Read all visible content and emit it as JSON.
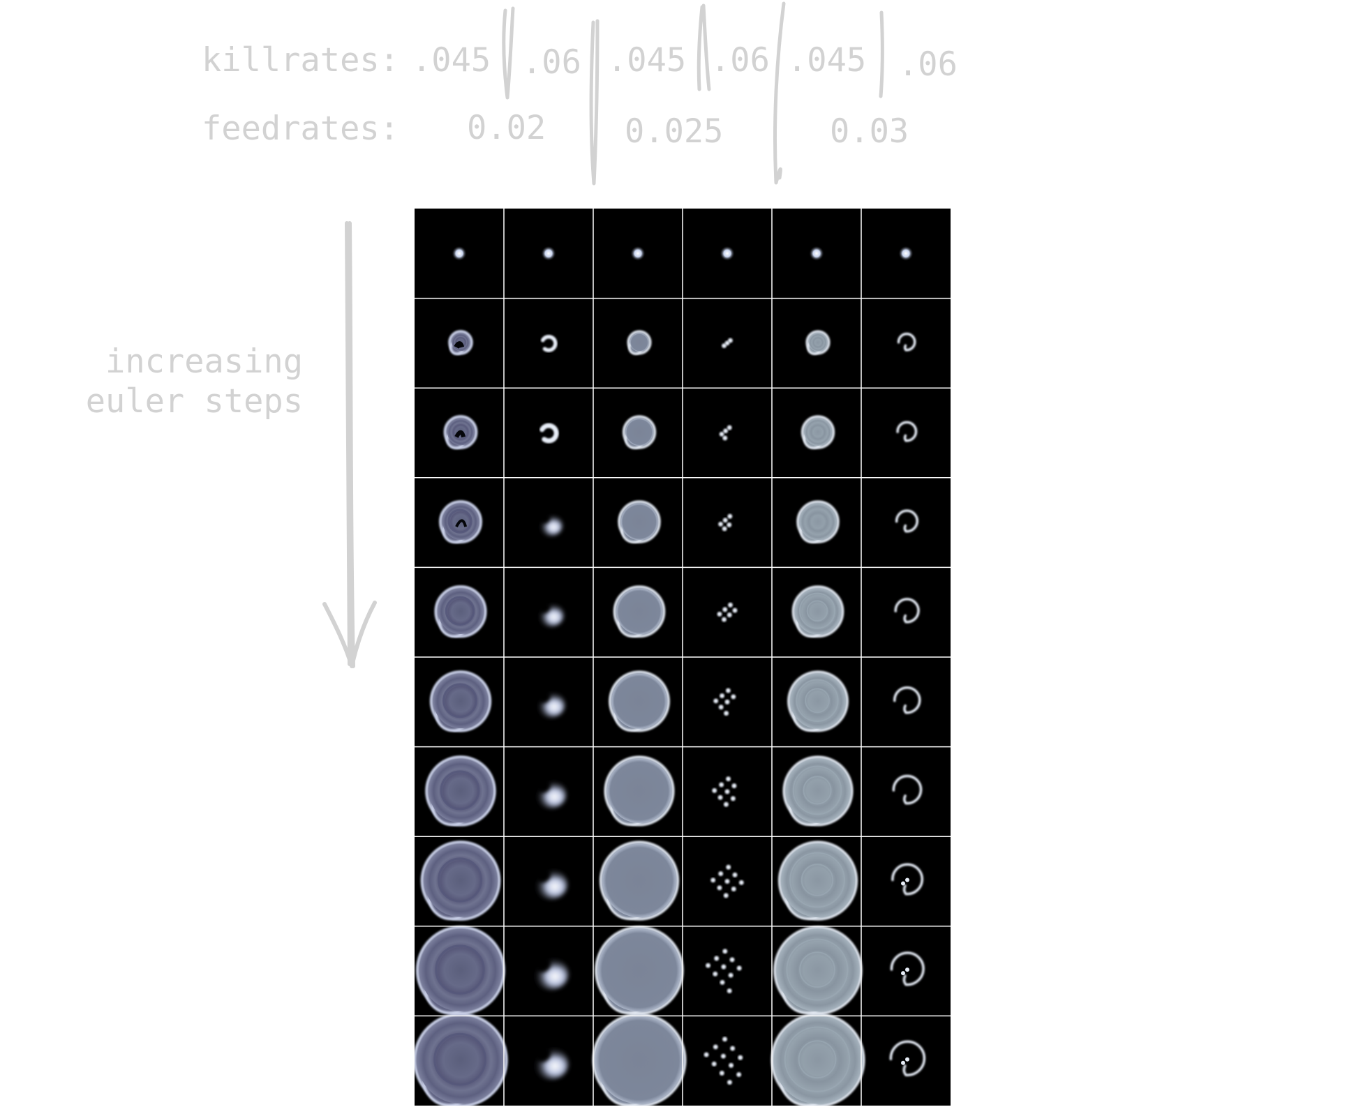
{
  "header": {
    "killrates_label": "killrates:",
    "feedrates_label": "feedrates:",
    "killrates": [
      ".045",
      ".06",
      ".045",
      ".06",
      ".045",
      ".06"
    ],
    "feedrates": [
      "0.02",
      "0.025",
      "0.03"
    ]
  },
  "side_label": {
    "line1": "increasing",
    "line2": "euler steps"
  },
  "colors": {
    "annotation": "#d2d2d2",
    "cell_background": "#000000",
    "grid_lines": "#ffffff"
  },
  "grid": {
    "columns": 6,
    "rows": 10,
    "column_patterns": [
      "spiral-blob",
      "crescent",
      "filled-blob",
      "spots",
      "filled-blob-light",
      "hook"
    ]
  }
}
